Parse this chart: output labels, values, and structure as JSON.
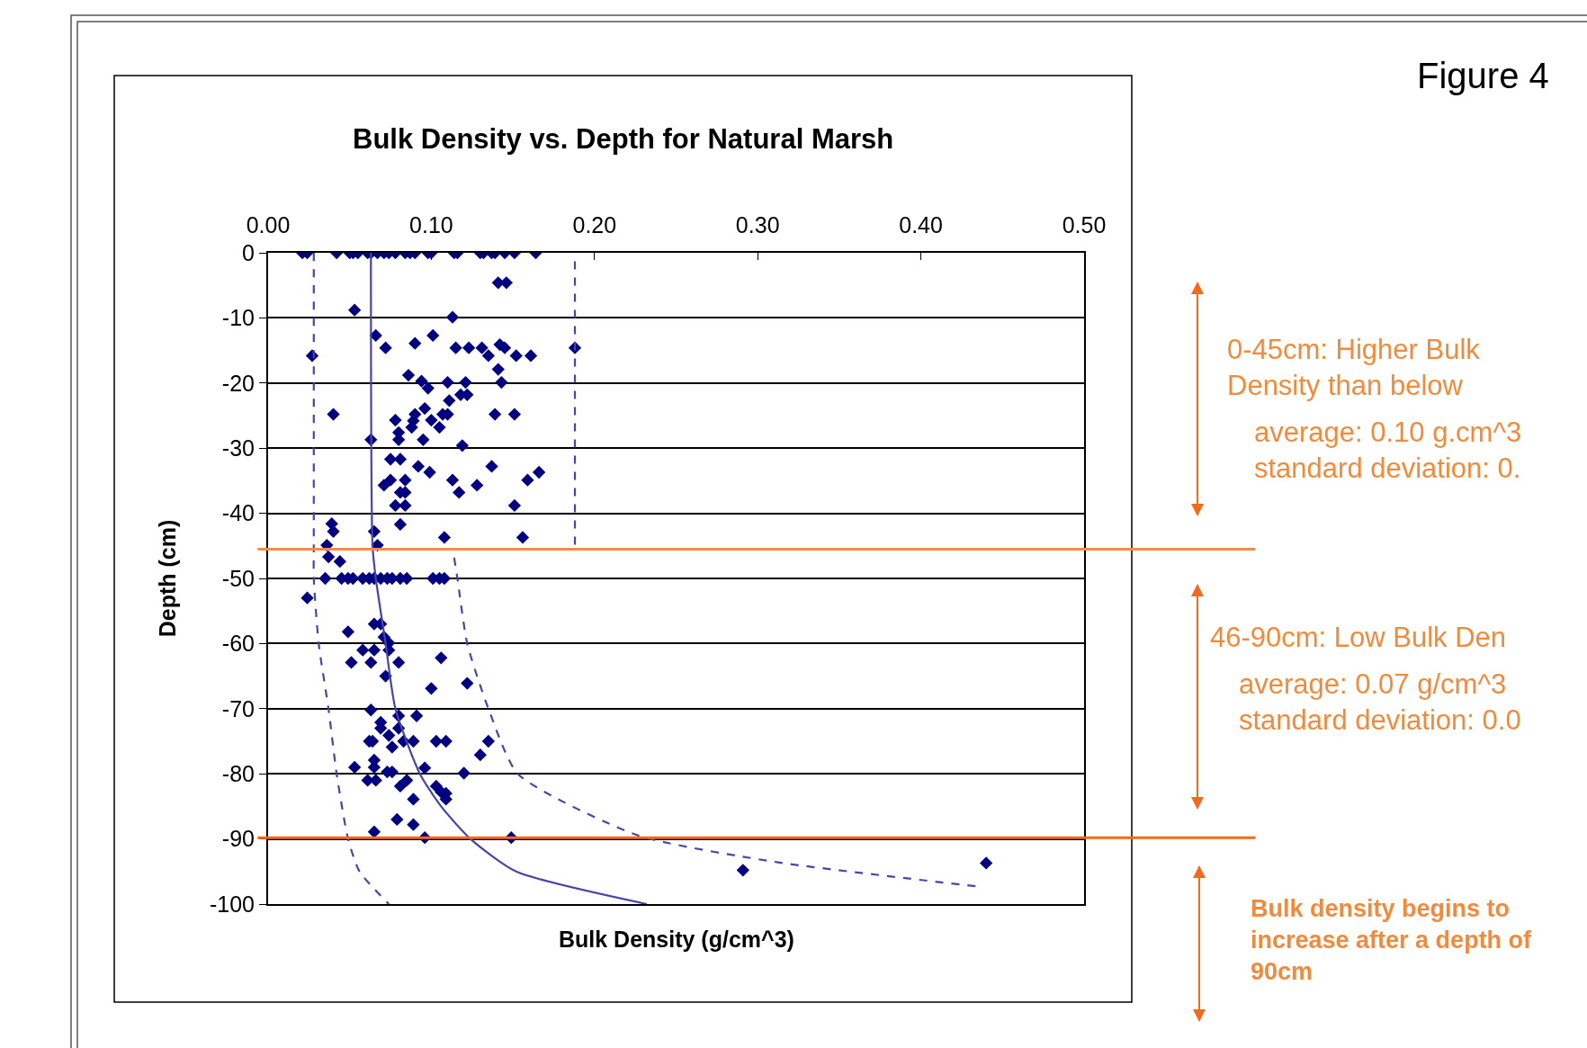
{
  "chart_data": {
    "type": "scatter",
    "title": "Bulk Density vs. Depth for Natural Marsh",
    "xlabel": "Bulk Density (g/cm^3)",
    "ylabel": "Depth (cm)",
    "xlim": [
      0,
      0.5
    ],
    "xticks": [
      {
        "value": 0,
        "label": "0.00"
      },
      {
        "value": 0.1,
        "label": "0.10"
      },
      {
        "value": 0.2,
        "label": "0.20"
      },
      {
        "value": 0.3,
        "label": "0.30"
      },
      {
        "value": 0.4,
        "label": "0.40"
      },
      {
        "value": 0.5,
        "label": "0.50"
      }
    ],
    "ylim": [
      -100,
      0
    ],
    "yticks": [
      0,
      -10,
      -20,
      -30,
      -40,
      -50,
      -60,
      -70,
      -80,
      -90,
      -100
    ],
    "grid": "y",
    "marker": "diamond",
    "series": [
      {
        "color": "#000080",
        "x": [
          0.021,
          0.024,
          0.042,
          0.05,
          0.052,
          0.055,
          0.061,
          0.063,
          0.067,
          0.071,
          0.074,
          0.078,
          0.084,
          0.087,
          0.09,
          0.098,
          0.1,
          0.114,
          0.116,
          0.13,
          0.132,
          0.137,
          0.139,
          0.145,
          0.151,
          0.164,
          0.141,
          0.146,
          0.053,
          0.113,
          0.066,
          0.101,
          0.072,
          0.09,
          0.027,
          0.115,
          0.123,
          0.131,
          0.135,
          0.142,
          0.145,
          0.152,
          0.161,
          0.188,
          0.141,
          0.086,
          0.094,
          0.098,
          0.11,
          0.121,
          0.143,
          0.111,
          0.118,
          0.122,
          0.04,
          0.096,
          0.09,
          0.107,
          0.11,
          0.139,
          0.151,
          0.078,
          0.089,
          0.1,
          0.088,
          0.105,
          0.08,
          0.08,
          0.095,
          0.063,
          0.119,
          0.075,
          0.081,
          0.092,
          0.099,
          0.137,
          0.166,
          0.159,
          0.113,
          0.071,
          0.075,
          0.084,
          0.117,
          0.128,
          0.081,
          0.084,
          0.078,
          0.084,
          0.151,
          0.039,
          0.04,
          0.081,
          0.065,
          0.108,
          0.156,
          0.036,
          0.067,
          0.037,
          0.044,
          0.035,
          0.045,
          0.049,
          0.052,
          0.058,
          0.062,
          0.065,
          0.069,
          0.073,
          0.076,
          0.081,
          0.085,
          0.101,
          0.105,
          0.108,
          0.024,
          0.049,
          0.065,
          0.069,
          0.071,
          0.074,
          0.074,
          0.058,
          0.065,
          0.051,
          0.063,
          0.08,
          0.106,
          0.072,
          0.1,
          0.122,
          0.063,
          0.08,
          0.091,
          0.069,
          0.069,
          0.08,
          0.074,
          0.062,
          0.064,
          0.083,
          0.089,
          0.103,
          0.109,
          0.135,
          0.076,
          0.13,
          0.065,
          0.065,
          0.053,
          0.096,
          0.12,
          0.073,
          0.076,
          0.061,
          0.066,
          0.085,
          0.081,
          0.103,
          0.106,
          0.109,
          0.109,
          0.089,
          0.079,
          0.089,
          0.065,
          0.096,
          0.149,
          0.291,
          0.44
        ],
        "values": [
          0,
          0,
          0,
          0,
          0,
          0,
          0,
          0,
          0,
          0,
          0,
          0,
          0,
          0,
          0,
          0,
          0,
          0,
          0,
          0,
          0,
          0,
          0,
          0,
          0,
          0,
          -4.6,
          -4.6,
          -8.8,
          -9.9,
          -12.7,
          -12.7,
          -14.6,
          -13.9,
          -15.8,
          -14.6,
          -14.6,
          -14.6,
          -15.8,
          -14.1,
          -14.6,
          -15.8,
          -15.8,
          -14.6,
          -17.9,
          -18.8,
          -19.7,
          -20.8,
          -19.9,
          -19.9,
          -19.9,
          -22.7,
          -21.8,
          -21.8,
          -24.8,
          -23.9,
          -24.8,
          -24.8,
          -24.8,
          -24.8,
          -24.8,
          -25.7,
          -25.8,
          -25.7,
          -26.8,
          -26.8,
          -27.6,
          -28.7,
          -28.7,
          -28.7,
          -29.6,
          -31.7,
          -31.7,
          -32.8,
          -33.7,
          -32.8,
          -33.7,
          -34.9,
          -34.9,
          -35.7,
          -34.9,
          -34.9,
          -36.8,
          -35.7,
          -36.8,
          -36.8,
          -38.8,
          -38.8,
          -38.8,
          -41.6,
          -42.8,
          -41.7,
          -42.8,
          -43.7,
          -43.7,
          -44.9,
          -44.9,
          -46.7,
          -47.4,
          -50,
          -50,
          -50,
          -50,
          -50,
          -50,
          -50,
          -50,
          -50,
          -50,
          -50,
          -50,
          -50,
          -50,
          -50,
          -53.0,
          -58.2,
          -57.0,
          -57.0,
          -59.0,
          -59.9,
          -61.0,
          -61.0,
          -61.0,
          -62.9,
          -62.9,
          -62.9,
          -62.2,
          -65.0,
          -66.9,
          -66.1,
          -70.2,
          -71.1,
          -71.1,
          -72.1,
          -73.0,
          -73.0,
          -74.1,
          -75.0,
          -75.0,
          -75.0,
          -75.0,
          -75.0,
          -75.0,
          -75.0,
          -75.9,
          -77.1,
          -77.9,
          -79.0,
          -79.0,
          -79.1,
          -79.9,
          -79.7,
          -79.7,
          -81.0,
          -81.0,
          -81.0,
          -81.9,
          -81.9,
          -82.8,
          -83.0,
          -83.9,
          -83.9,
          -87.0,
          -87.8,
          -88.9,
          -89.8,
          -89.8,
          -94.8,
          -93.7
        ]
      },
      {
        "type": "line",
        "color": "#4646a8",
        "marker": "none",
        "line_style": "solid",
        "x": [
          0.063,
          0.064,
          0.066,
          0.072,
          0.078,
          0.093,
          0.106,
          0.124,
          0.152,
          0.232
        ],
        "values": [
          0,
          -45,
          -50,
          -60,
          -70,
          -80,
          -85,
          -90,
          -95,
          -100
        ]
      },
      {
        "type": "line",
        "color": "#4646a8",
        "marker": "none",
        "line_style": "dashed",
        "x": [
          0.028,
          0.028,
          0.028,
          0.031,
          0.037,
          0.042,
          0.049,
          0.056,
          0.074
        ],
        "values": [
          0,
          -45,
          -50,
          -60,
          -70,
          -80,
          -90,
          -95,
          -100
        ]
      },
      {
        "type": "line",
        "color": "#4646a8",
        "marker": "none",
        "line_style": "dashed",
        "x": [
          0.188,
          0.188,
          null,
          0.114,
          0.116,
          0.122,
          0.135,
          0.153,
          0.226,
          0.31,
          0.435
        ],
        "values": [
          -1.3,
          -45.8,
          null,
          -46.8,
          -50,
          -60,
          -70,
          -80,
          -89.4,
          -93.5,
          -97.3
        ]
      }
    ],
    "ref_lines": [
      {
        "axis": "y",
        "value": -45.5,
        "color": "#f08c4c"
      },
      {
        "axis": "y",
        "value": -89.8,
        "color": "#f96a10"
      }
    ],
    "annotations": [
      "Figure 4",
      "0-45cm: Higher Bulk\nDensity than below",
      "average: 0.10 g.cm^3\nstandard deviation: 0.",
      "46-90cm: Low Bulk Den",
      "average: 0.07 g/cm^3\nstandard deviation: 0.0",
      "Bulk density begins to\nincrease after a depth of\n90cm"
    ]
  }
}
